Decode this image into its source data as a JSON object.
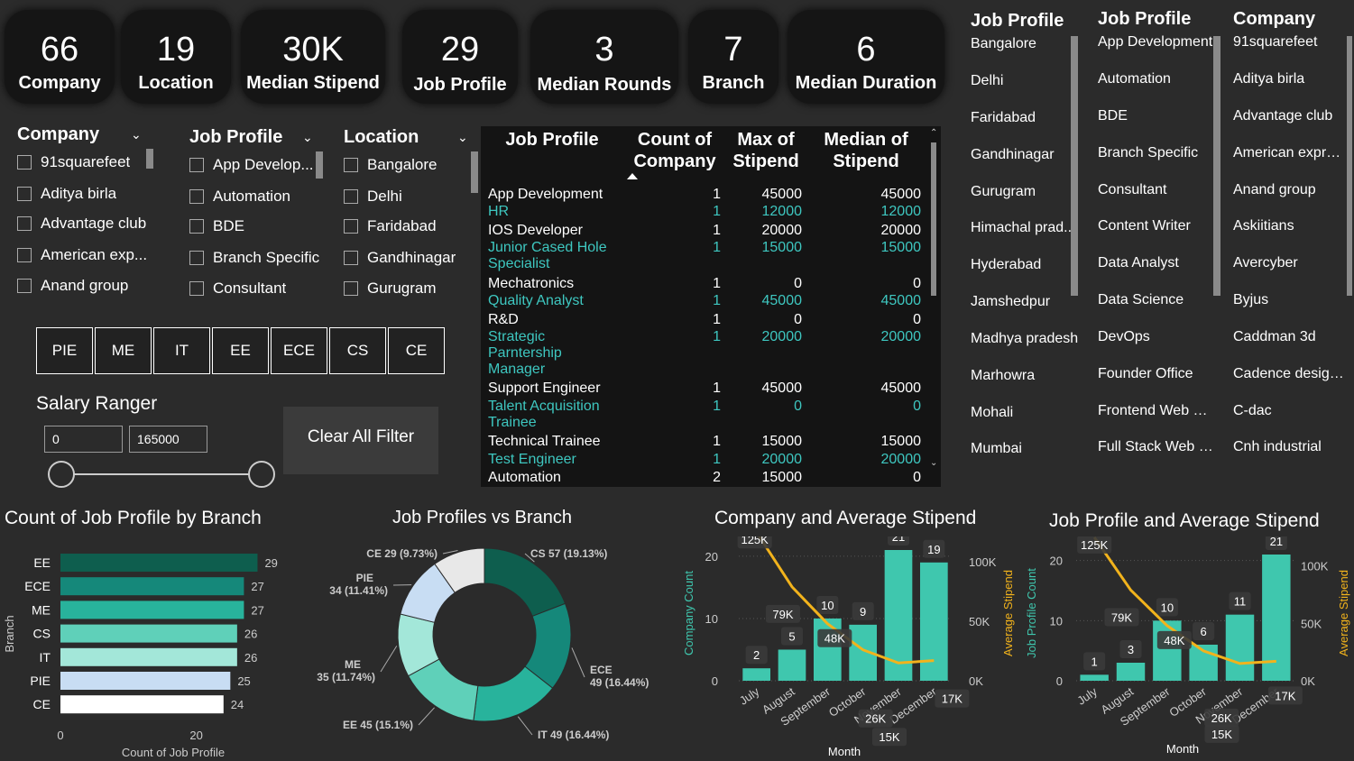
{
  "kpis": [
    {
      "value": "66",
      "label": "Company"
    },
    {
      "value": "19",
      "label": "Location"
    },
    {
      "value": "30K",
      "label": "Median Stipend"
    },
    {
      "value": "29",
      "label": "Job Profile"
    },
    {
      "value": "3",
      "label": "Median Rounds"
    },
    {
      "value": "7",
      "label": "Branch"
    },
    {
      "value": "6",
      "label": "Median Duration"
    }
  ],
  "slicers": {
    "company": {
      "title": "Company",
      "items": [
        "91squarefeet",
        "Aditya birla",
        "Advantage club",
        "American exp...",
        "Anand group"
      ]
    },
    "job_profile": {
      "title": "Job Profile",
      "items": [
        "App Develop...",
        "Automation",
        "BDE",
        "Branch Specific",
        "Consultant"
      ]
    },
    "location": {
      "title": "Location",
      "items": [
        "Bangalore",
        "Delhi",
        "Faridabad",
        "Gandhinagar",
        "Gurugram"
      ]
    }
  },
  "branch_buttons": [
    "PIE",
    "ME",
    "IT",
    "EE",
    "ECE",
    "CS",
    "CE"
  ],
  "salary": {
    "title": "Salary Ranger",
    "min": "0",
    "max": "165000"
  },
  "clear_button": "Clear All Filter",
  "table": {
    "headers": [
      "Job Profile",
      "Count of Company",
      "Max of Stipend",
      "Median of Stipend"
    ],
    "rows": [
      {
        "profile": "App Development",
        "count": "1",
        "max": "45000",
        "median": "45000"
      },
      {
        "profile": "HR",
        "count": "1",
        "max": "12000",
        "median": "12000"
      },
      {
        "profile": "IOS Developer",
        "count": "1",
        "max": "20000",
        "median": "20000"
      },
      {
        "profile": "Junior Cased Hole Specialist",
        "count": "1",
        "max": "15000",
        "median": "15000"
      },
      {
        "profile": "Mechatronics",
        "count": "1",
        "max": "0",
        "median": "0"
      },
      {
        "profile": "Quality Analyst",
        "count": "1",
        "max": "45000",
        "median": "45000"
      },
      {
        "profile": "R&D",
        "count": "1",
        "max": "0",
        "median": "0"
      },
      {
        "profile": "Strategic Parntership Manager",
        "count": "1",
        "max": "20000",
        "median": "20000"
      },
      {
        "profile": "Support Engineer",
        "count": "1",
        "max": "45000",
        "median": "45000"
      },
      {
        "profile": "Talent Acquisition Trainee",
        "count": "1",
        "max": "0",
        "median": "0"
      },
      {
        "profile": "Technical Trainee",
        "count": "1",
        "max": "15000",
        "median": "15000"
      },
      {
        "profile": "Test Engineer",
        "count": "1",
        "max": "20000",
        "median": "20000"
      },
      {
        "profile": "Automation",
        "count": "2",
        "max": "15000",
        "median": "0"
      }
    ]
  },
  "lists": {
    "locations": {
      "title": "Job Profile",
      "items": [
        "Bangalore",
        "Delhi",
        "Faridabad",
        "Gandhinagar",
        "Gurugram",
        "Himachal prad...",
        "Hyderabad",
        "Jamshedpur",
        "Madhya pradesh",
        "Marhowra",
        "Mohali",
        "Mumbai"
      ]
    },
    "job_profiles": {
      "title": "Job Profile",
      "items": [
        "App Development",
        "Automation",
        "BDE",
        "Branch Specific",
        "Consultant",
        "Content Writer",
        "Data Analyst",
        "Data Science",
        "DevOps",
        "Founder Office",
        "Frontend Web D...",
        "Full Stack Web D..."
      ]
    },
    "companies": {
      "title": "Company",
      "items": [
        "91squarefeet",
        "Aditya birla",
        "Advantage club",
        "American express",
        "Anand group",
        "Askiitians",
        "Avercyber",
        "Byjus",
        "Caddman 3d",
        "Cadence design...",
        "C-dac",
        "Cnh industrial"
      ]
    }
  },
  "charts": {
    "bar": {
      "title": "Count of Job Profile by Branch"
    },
    "donut": {
      "title": "Job Profiles vs Branch"
    },
    "combo1": {
      "title": "Company and Average Stipend"
    },
    "combo2": {
      "title": "Job Profile and Average Stipend"
    }
  },
  "chart_data": [
    {
      "type": "bar",
      "title": "Count of Job Profile by Branch",
      "categories": [
        "EE",
        "ECE",
        "ME",
        "CS",
        "IT",
        "PIE",
        "CE"
      ],
      "values": [
        29,
        27,
        27,
        26,
        26,
        25,
        24
      ],
      "labels": [
        "29",
        "27",
        "27",
        "26",
        "26",
        "25",
        "24"
      ],
      "colors": [
        "#0e5e4e",
        "#15887a",
        "#28b39c",
        "#5fd0b9",
        "#a3e7d9",
        "#c8ddf3",
        "#ffffff"
      ],
      "xlabel": "Count of Job Profile",
      "ylabel": "Branch",
      "xticks": [
        "0",
        "20"
      ],
      "xlim": [
        0,
        30
      ]
    },
    {
      "type": "pie",
      "title": "Job Profiles vs Branch",
      "slices": [
        {
          "label": "CS 57 (19.13%)",
          "value": 57,
          "color": "#0e5e4e"
        },
        {
          "label": "ECE 49 (16.44%)",
          "value": 49,
          "color": "#15887a"
        },
        {
          "label": "IT 49 (16.44%)",
          "value": 49,
          "color": "#28b39c"
        },
        {
          "label": "EE 45 (15.1%)",
          "value": 45,
          "color": "#5fd0b9"
        },
        {
          "label": "ME 35 (11.74%)",
          "value": 35,
          "color": "#a3e7d9"
        },
        {
          "label": "PIE 34 (11.41%)",
          "value": 34,
          "color": "#c8ddf3"
        },
        {
          "label": "CE 29 (9.73%)",
          "value": 29,
          "color": "#e8e8e8"
        }
      ]
    },
    {
      "type": "bar",
      "title": "Company and Average Stipend",
      "categories": [
        "July",
        "August",
        "September",
        "October",
        "November",
        "December"
      ],
      "values": [
        2,
        5,
        10,
        9,
        21,
        19
      ],
      "line_values": [
        125000,
        79000,
        48000,
        26000,
        15000,
        17000
      ],
      "line_labels": [
        "125K",
        "79K",
        "48K",
        "26K",
        "15K",
        "17K"
      ],
      "ylabel": "Company Count",
      "y2label": "Average Stipend",
      "xlabel": "Month",
      "yticks": [
        "0",
        "10",
        "20"
      ],
      "y2ticks": [
        "0K",
        "50K",
        "100K"
      ],
      "ylim": [
        0,
        21
      ],
      "y2lim": [
        0,
        110000
      ]
    },
    {
      "type": "bar",
      "title": "Job Profile and Average Stipend",
      "categories": [
        "July",
        "August",
        "September",
        "October",
        "November",
        "December"
      ],
      "values": [
        1,
        3,
        10,
        6,
        11,
        21
      ],
      "line_values": [
        125000,
        79000,
        48000,
        26000,
        15000,
        17000
      ],
      "line_labels": [
        "125K",
        "79K",
        "48K",
        "26K",
        "15K",
        "17K"
      ],
      "ylabel": "Job Profile Count",
      "y2label": "Average Stipend",
      "xlabel": "Month",
      "yticks": [
        "0",
        "10",
        "20"
      ],
      "y2ticks": [
        "0K",
        "50K",
        "100K"
      ],
      "ylim": [
        0,
        21
      ],
      "y2lim": [
        0,
        110000
      ]
    }
  ]
}
